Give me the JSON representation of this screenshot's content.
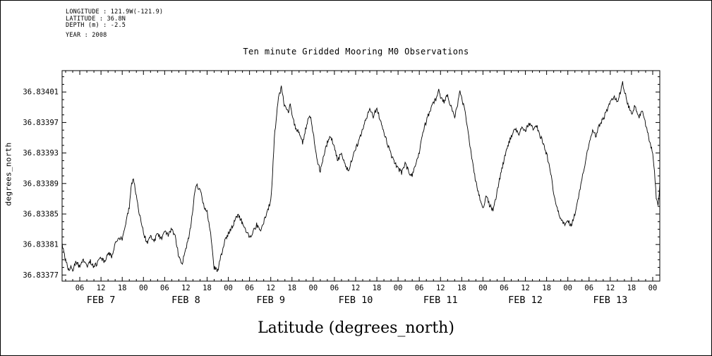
{
  "page": {
    "background": "#ffffff",
    "text_color": "#000000"
  },
  "header": {
    "lines": [
      "LONGITUDE : 121.9W(-121.9)",
      "LATITUDE : 36.8N",
      "DEPTH (m) : -2.5",
      "YEAR : 2008"
    ]
  },
  "title": "Ten minute Gridded Mooring M0 Observations",
  "x_axis_label": "Latitude (degrees_north)",
  "y_axis_label": "degrees_north",
  "chart_data": {
    "type": "line",
    "title": "Ten minute Gridded Mooring M0 Observations",
    "xlabel": "Latitude (degrees_north)",
    "ylabel": "degrees_north",
    "x_unit": "hours since 2008-02-07 00:00",
    "xlim": [
      1,
      170
    ],
    "ylim": [
      36.833762,
      36.834038
    ],
    "grid": false,
    "line_color": "#000000",
    "noise_amplitude": 3e-06,
    "y_tick_values": [
      36.83377,
      36.83381,
      36.83385,
      36.83389,
      36.83393,
      36.83397,
      36.83401
    ],
    "y_tick_labels": [
      "36.83377",
      "36.83381",
      "36.83385",
      "36.83389",
      "36.83393",
      "36.83397",
      "36.83401"
    ],
    "x_tick_hours": [
      6,
      12,
      18,
      24,
      30,
      36,
      42,
      48,
      54,
      60,
      66,
      72,
      78,
      84,
      90,
      96,
      102,
      108,
      114,
      120,
      126,
      132,
      138,
      144,
      150,
      156,
      162,
      168
    ],
    "x_tick_labels": [
      "06",
      "12",
      "18",
      "00",
      "06",
      "12",
      "18",
      "00",
      "06",
      "12",
      "18",
      "00",
      "06",
      "12",
      "18",
      "00",
      "06",
      "12",
      "18",
      "00",
      "06",
      "12",
      "18",
      "00",
      "06",
      "12",
      "18",
      "00"
    ],
    "day_labels": [
      {
        "label": "FEB 7",
        "hour": 12
      },
      {
        "label": "FEB 8",
        "hour": 36
      },
      {
        "label": "FEB 9",
        "hour": 60
      },
      {
        "label": "FEB 10",
        "hour": 84
      },
      {
        "label": "FEB 11",
        "hour": 108
      },
      {
        "label": "FEB 12",
        "hour": 132
      },
      {
        "label": "FEB 13",
        "hour": 156
      }
    ],
    "series": [
      {
        "name": "latitude",
        "color": "#000000",
        "points": [
          [
            1,
            36.83381
          ],
          [
            1.5,
            36.8338
          ],
          [
            2,
            36.833788
          ],
          [
            3,
            36.833776
          ],
          [
            3.5,
            36.833784
          ],
          [
            4,
            36.833776
          ],
          [
            5,
            36.833788
          ],
          [
            6,
            36.83378
          ],
          [
            7,
            36.83379
          ],
          [
            8,
            36.833782
          ],
          [
            9,
            36.833788
          ],
          [
            10,
            36.83378
          ],
          [
            11,
            36.833786
          ],
          [
            12,
            36.833792
          ],
          [
            13,
            36.833788
          ],
          [
            14,
            36.8338
          ],
          [
            15,
            36.833794
          ],
          [
            16,
            36.833812
          ],
          [
            17,
            36.83382
          ],
          [
            18,
            36.833816
          ],
          [
            19,
            36.833836
          ],
          [
            20,
            36.83386
          ],
          [
            20.5,
            36.833884
          ],
          [
            21,
            36.833896
          ],
          [
            21.5,
            36.83389
          ],
          [
            22,
            36.833872
          ],
          [
            23,
            36.833846
          ],
          [
            24,
            36.833826
          ],
          [
            25,
            36.833812
          ],
          [
            26,
            36.83382
          ],
          [
            27,
            36.833814
          ],
          [
            28,
            36.833824
          ],
          [
            29,
            36.833818
          ],
          [
            30,
            36.833828
          ],
          [
            31,
            36.833822
          ],
          [
            32,
            36.83383
          ],
          [
            33,
            36.83382
          ],
          [
            34,
            36.833794
          ],
          [
            35,
            36.833786
          ],
          [
            36,
            36.833804
          ],
          [
            37,
            36.833824
          ],
          [
            38,
            36.833856
          ],
          [
            38.5,
            36.833878
          ],
          [
            39,
            36.833888
          ],
          [
            40,
            36.833882
          ],
          [
            41,
            36.833862
          ],
          [
            42,
            36.833852
          ],
          [
            43,
            36.833824
          ],
          [
            43.5,
            36.8338
          ],
          [
            44,
            36.83378
          ],
          [
            45,
            36.833776
          ],
          [
            46,
            36.833796
          ],
          [
            47,
            36.833816
          ],
          [
            48,
            36.833824
          ],
          [
            49,
            36.833832
          ],
          [
            50,
            36.833844
          ],
          [
            51,
            36.833848
          ],
          [
            52,
            36.833838
          ],
          [
            53,
            36.833828
          ],
          [
            54,
            36.833818
          ],
          [
            55,
            36.833826
          ],
          [
            56,
            36.833836
          ],
          [
            57,
            36.833828
          ],
          [
            58,
            36.83384
          ],
          [
            59,
            36.833852
          ],
          [
            60,
            36.833868
          ],
          [
            60.5,
            36.8339
          ],
          [
            61,
            36.83395
          ],
          [
            62,
            36.833996
          ],
          [
            62.5,
            36.834008
          ],
          [
            63,
            36.834016
          ],
          [
            63.5,
            36.834002
          ],
          [
            64,
            36.83399
          ],
          [
            65,
            36.833984
          ],
          [
            65.5,
            36.833996
          ],
          [
            66,
            36.833978
          ],
          [
            67,
            36.833964
          ],
          [
            68,
            36.833956
          ],
          [
            69,
            36.833944
          ],
          [
            70,
            36.833964
          ],
          [
            71,
            36.83398
          ],
          [
            71.5,
            36.833972
          ],
          [
            72,
            36.833956
          ],
          [
            73,
            36.833922
          ],
          [
            74,
            36.833906
          ],
          [
            75,
            36.833926
          ],
          [
            76,
            36.833944
          ],
          [
            77,
            36.833952
          ],
          [
            78,
            36.833936
          ],
          [
            79,
            36.83392
          ],
          [
            80,
            36.833932
          ],
          [
            81,
            36.833914
          ],
          [
            82,
            36.833906
          ],
          [
            83,
            36.833922
          ],
          [
            84,
            36.833936
          ],
          [
            85,
            36.833946
          ],
          [
            86,
            36.833962
          ],
          [
            87,
            36.833976
          ],
          [
            88,
            36.833986
          ],
          [
            89,
            36.833978
          ],
          [
            90,
            36.833988
          ],
          [
            91,
            36.833972
          ],
          [
            92,
            36.833958
          ],
          [
            93,
            36.833942
          ],
          [
            94,
            36.833928
          ],
          [
            95,
            36.833918
          ],
          [
            96,
            36.83391
          ],
          [
            97,
            36.833904
          ],
          [
            98,
            36.833916
          ],
          [
            99,
            36.833906
          ],
          [
            100,
            36.8339
          ],
          [
            101,
            36.833914
          ],
          [
            102,
            36.833932
          ],
          [
            103,
            36.833956
          ],
          [
            104,
            36.833972
          ],
          [
            105,
            36.833986
          ],
          [
            106,
            36.833996
          ],
          [
            107,
            36.834002
          ],
          [
            107.5,
            36.834012
          ],
          [
            108,
            36.834004
          ],
          [
            109,
            36.833996
          ],
          [
            110,
            36.834006
          ],
          [
            111,
            36.83399
          ],
          [
            112,
            36.833976
          ],
          [
            113,
            36.833998
          ],
          [
            113.5,
            36.83401
          ],
          [
            114,
            36.834002
          ],
          [
            115,
            36.833984
          ],
          [
            116,
            36.83395
          ],
          [
            117,
            36.833918
          ],
          [
            118,
            36.833892
          ],
          [
            119,
            36.833872
          ],
          [
            120,
            36.833858
          ],
          [
            121,
            36.833874
          ],
          [
            122,
            36.83386
          ],
          [
            123,
            36.833856
          ],
          [
            124,
            36.83388
          ],
          [
            125,
            36.833902
          ],
          [
            126,
            36.833922
          ],
          [
            127,
            36.83394
          ],
          [
            128,
            36.833952
          ],
          [
            129,
            36.833962
          ],
          [
            130,
            36.833954
          ],
          [
            131,
            36.833966
          ],
          [
            132,
            36.833958
          ],
          [
            133,
            36.83397
          ],
          [
            134,
            36.833962
          ],
          [
            135,
            36.833968
          ],
          [
            136,
            36.833954
          ],
          [
            137,
            36.833944
          ],
          [
            138,
            36.833928
          ],
          [
            139,
            36.833908
          ],
          [
            140,
            36.833878
          ],
          [
            141,
            36.833858
          ],
          [
            142,
            36.833844
          ],
          [
            143,
            36.833836
          ],
          [
            144,
            36.833842
          ],
          [
            145,
            36.833834
          ],
          [
            146,
            36.83385
          ],
          [
            147,
            36.833872
          ],
          [
            148,
            36.833896
          ],
          [
            149,
            36.83392
          ],
          [
            150,
            36.833944
          ],
          [
            151,
            36.83396
          ],
          [
            152,
            36.833952
          ],
          [
            153,
            36.833968
          ],
          [
            154,
            36.833974
          ],
          [
            155,
            36.833986
          ],
          [
            156,
            36.833996
          ],
          [
            157,
            36.834004
          ],
          [
            158,
            36.833998
          ],
          [
            159,
            36.834012
          ],
          [
            159.5,
            36.834022
          ],
          [
            160,
            36.834012
          ],
          [
            161,
            36.833994
          ],
          [
            162,
            36.83398
          ],
          [
            163,
            36.833992
          ],
          [
            164,
            36.833976
          ],
          [
            165,
            36.833986
          ],
          [
            166,
            36.833968
          ],
          [
            167,
            36.833948
          ],
          [
            168,
            36.833928
          ],
          [
            168.5,
            36.833906
          ],
          [
            169,
            36.833872
          ],
          [
            169.5,
            36.83386
          ],
          [
            170,
            36.833888
          ]
        ]
      }
    ]
  }
}
